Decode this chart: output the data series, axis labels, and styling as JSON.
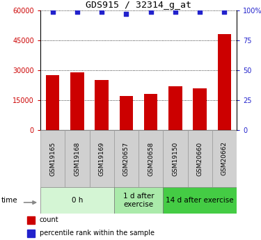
{
  "title": "GDS915 / 32314_g_at",
  "categories": [
    "GSM19165",
    "GSM19168",
    "GSM19169",
    "GSM20657",
    "GSM20658",
    "GSM19150",
    "GSM20660",
    "GSM20662"
  ],
  "bar_values": [
    27500,
    28800,
    25000,
    17000,
    18200,
    22000,
    21000,
    48000
  ],
  "percentile_values": [
    99,
    99,
    99,
    97,
    99,
    99,
    99,
    99
  ],
  "bar_color": "#cc0000",
  "dot_color": "#2222cc",
  "ylim_left": [
    0,
    60000
  ],
  "ylim_right": [
    0,
    100
  ],
  "yticks_left": [
    0,
    15000,
    30000,
    45000,
    60000
  ],
  "yticks_right": [
    0,
    25,
    50,
    75,
    100
  ],
  "ytick_labels_right": [
    "0",
    "25",
    "50",
    "75",
    "100%"
  ],
  "groups": [
    {
      "label": "0 h",
      "start": 0,
      "end": 3,
      "color": "#d4f5d4"
    },
    {
      "label": "1 d after\nexercise",
      "start": 3,
      "end": 5,
      "color": "#aaeaaa"
    },
    {
      "label": "14 d after exercise",
      "start": 5,
      "end": 8,
      "color": "#44cc44"
    }
  ],
  "time_label": "time",
  "legend_items": [
    {
      "label": "count",
      "color": "#cc0000"
    },
    {
      "label": "percentile rank within the sample",
      "color": "#2222cc"
    }
  ],
  "tick_color_left": "#cc0000",
  "tick_color_right": "#2222cc",
  "grid_color": "black",
  "grid_linestyle": "dotted"
}
